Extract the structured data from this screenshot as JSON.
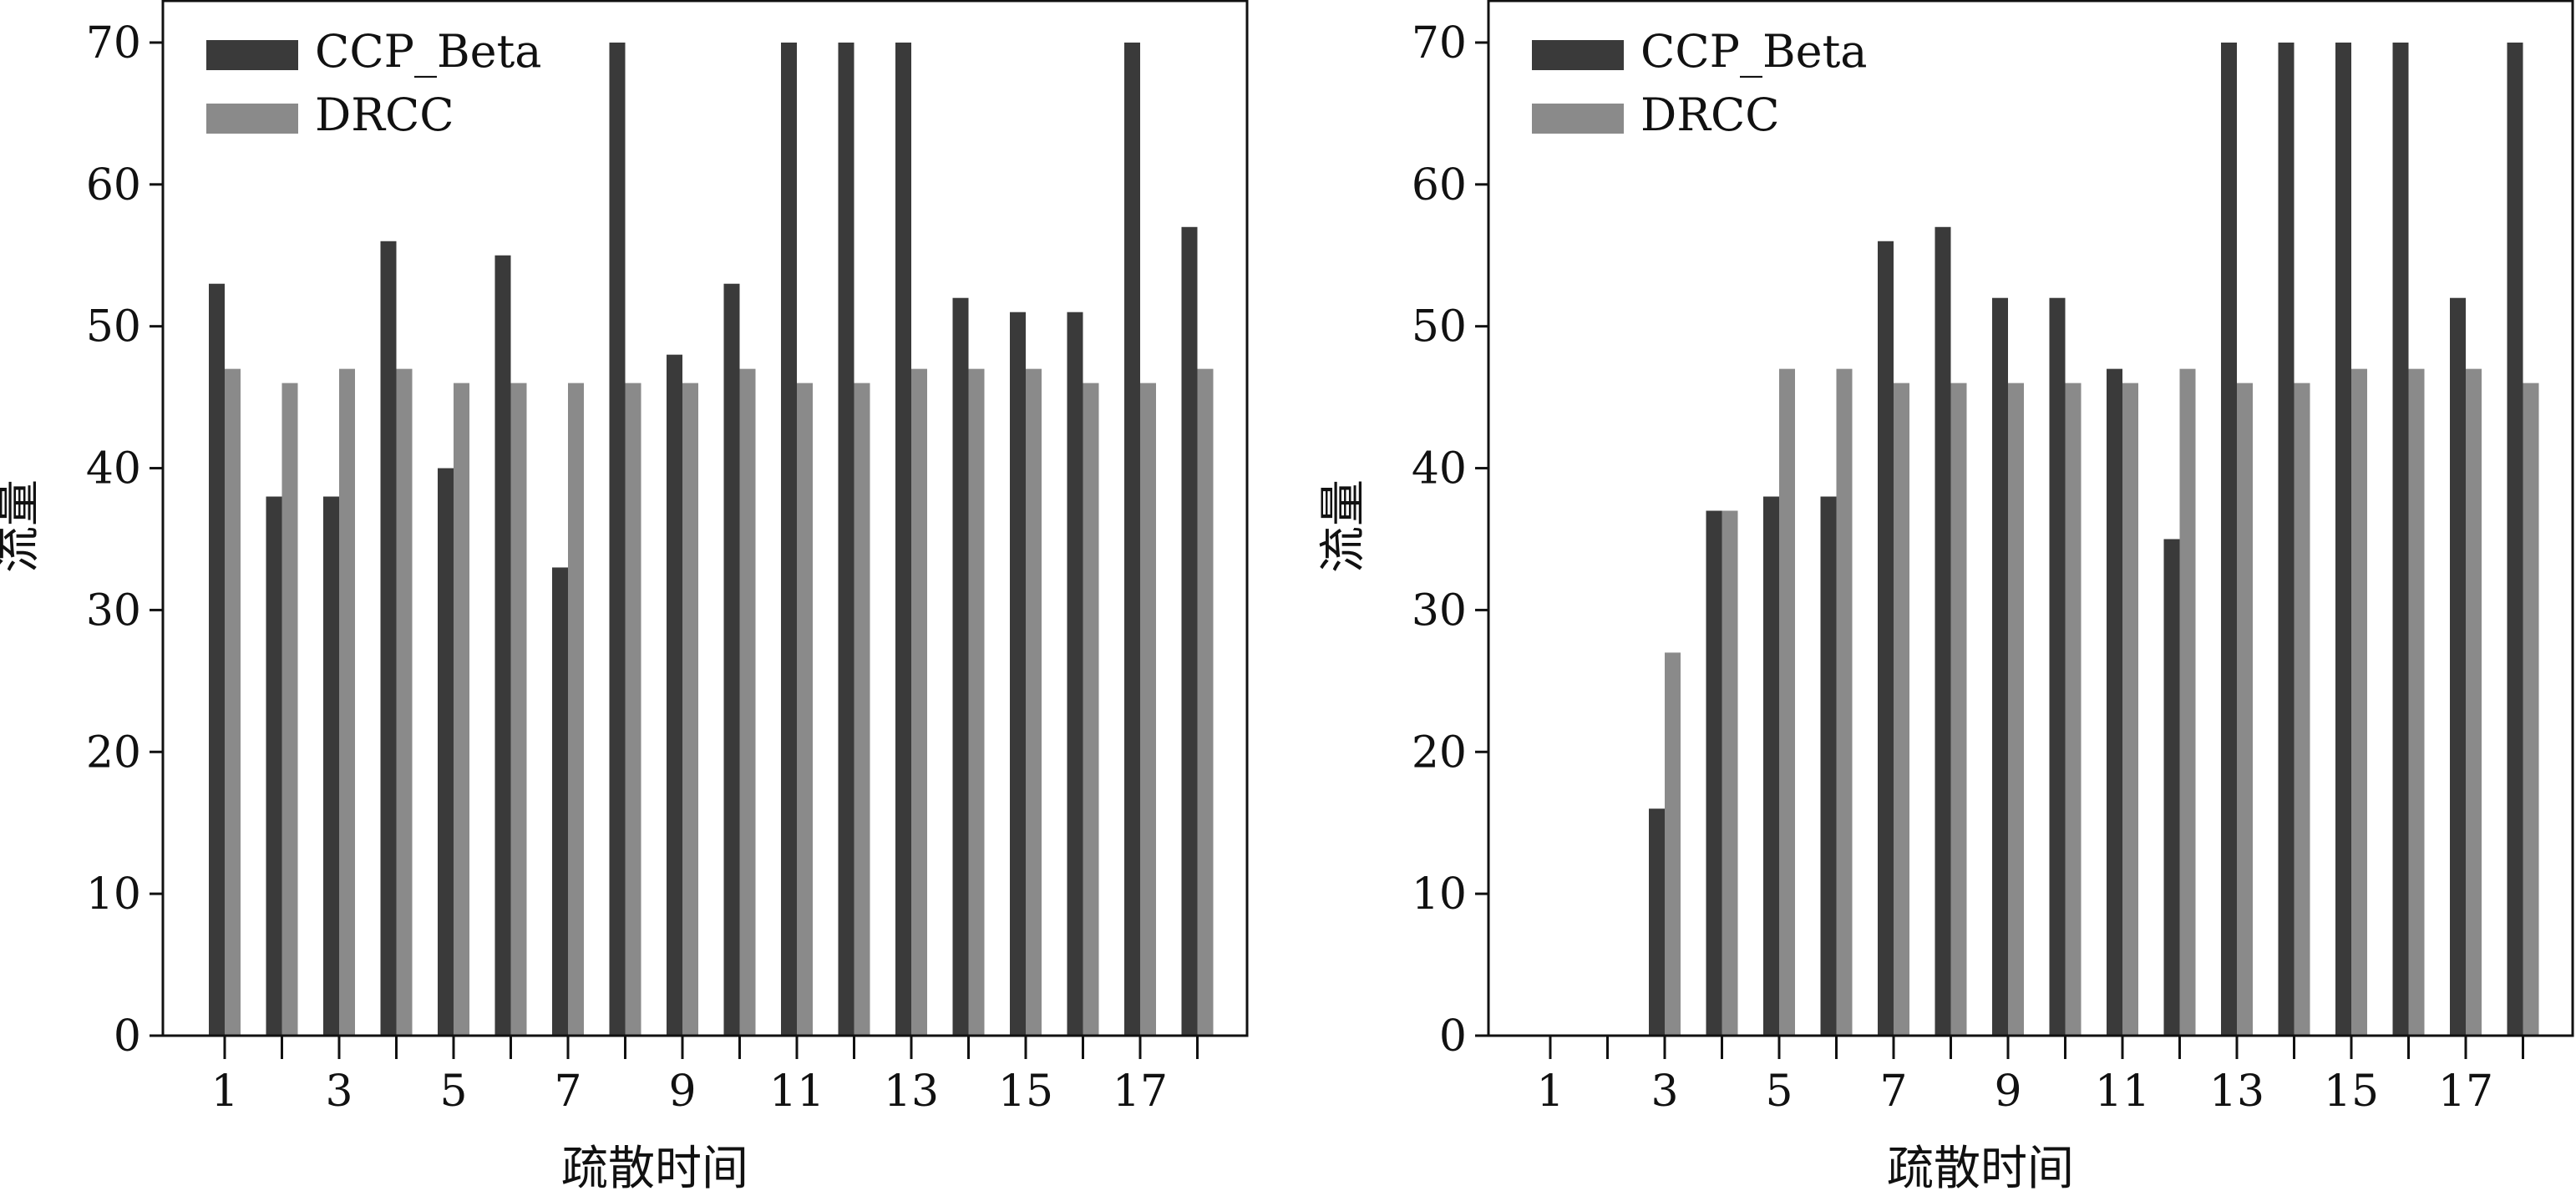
{
  "colors": {
    "series_1": "#3a3a3a",
    "series_2": "#8a8a8a",
    "axis": "#111111"
  },
  "chart_data": [
    {
      "type": "bar",
      "xlabel": "疏散时间",
      "ylabel": "流量",
      "categories": [
        1,
        2,
        3,
        4,
        5,
        6,
        7,
        8,
        9,
        10,
        11,
        12,
        13,
        14,
        15,
        16,
        17,
        18
      ],
      "xtick_labels": [
        "1",
        "3",
        "5",
        "7",
        "9",
        "11",
        "13",
        "15",
        "17"
      ],
      "yticks": [
        0,
        10,
        20,
        30,
        40,
        50,
        60,
        70
      ],
      "ylim": [
        0,
        73
      ],
      "legend_position": "top-left",
      "grid": false,
      "series": [
        {
          "name": "CCP_Beta",
          "values": [
            53,
            38,
            38,
            56,
            40,
            55,
            33,
            70,
            48,
            53,
            70,
            70,
            70,
            52,
            51,
            51,
            70,
            57
          ]
        },
        {
          "name": "DRCC",
          "values": [
            47,
            46,
            47,
            47,
            46,
            46,
            46,
            46,
            46,
            47,
            46,
            46,
            47,
            47,
            47,
            46,
            46,
            47
          ]
        }
      ]
    },
    {
      "type": "bar",
      "xlabel": "疏散时间",
      "ylabel": "流量",
      "categories": [
        1,
        2,
        3,
        4,
        5,
        6,
        7,
        8,
        9,
        10,
        11,
        12,
        13,
        14,
        15,
        16,
        17,
        18
      ],
      "xtick_labels": [
        "1",
        "3",
        "5",
        "7",
        "9",
        "11",
        "13",
        "15",
        "17"
      ],
      "yticks": [
        0,
        10,
        20,
        30,
        40,
        50,
        60,
        70
      ],
      "ylim": [
        0,
        73
      ],
      "legend_position": "top-left",
      "grid": false,
      "series": [
        {
          "name": "CCP_Beta",
          "values": [
            0,
            0,
            16,
            37,
            38,
            38,
            56,
            57,
            52,
            52,
            47,
            35,
            70,
            70,
            70,
            70,
            52,
            70
          ]
        },
        {
          "name": "DRCC",
          "values": [
            0,
            0,
            27,
            37,
            47,
            47,
            46,
            46,
            46,
            46,
            46,
            47,
            46,
            46,
            47,
            47,
            47,
            46
          ]
        }
      ]
    }
  ]
}
